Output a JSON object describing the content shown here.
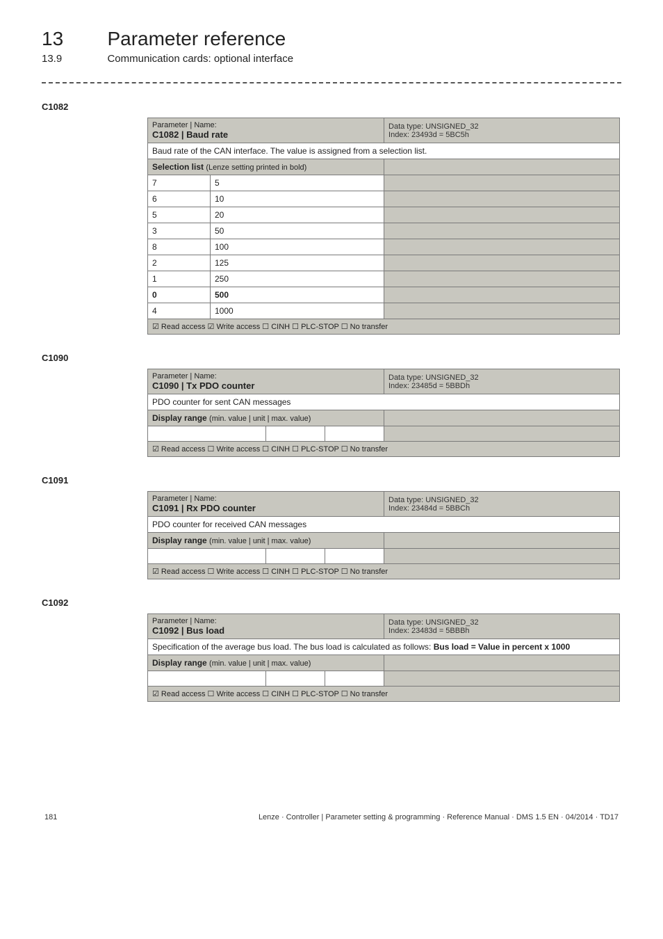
{
  "header": {
    "chapter_num": "13",
    "chapter_title": "Parameter reference",
    "sub_num": "13.9",
    "sub_title": "Communication cards: optional interface"
  },
  "c1082": {
    "code": "C1082",
    "param_line": "Parameter | Name:",
    "title": "C1082 | Baud rate",
    "datatype": "Data type: UNSIGNED_32",
    "index": "Index: 23493d = 5BC5h",
    "desc": "Baud rate of the CAN interface. The value is assigned from a selection list.",
    "sel_header": "Selection list",
    "sel_header_small": "(Lenze setting printed in bold)",
    "rows": [
      {
        "n": "7",
        "v": "5",
        "bold": false
      },
      {
        "n": "6",
        "v": "10",
        "bold": false
      },
      {
        "n": "5",
        "v": "20",
        "bold": false
      },
      {
        "n": "3",
        "v": "50",
        "bold": false
      },
      {
        "n": "8",
        "v": "100",
        "bold": false
      },
      {
        "n": "2",
        "v": "125",
        "bold": false
      },
      {
        "n": "1",
        "v": "250",
        "bold": false
      },
      {
        "n": "0",
        "v": "500",
        "bold": true
      },
      {
        "n": "4",
        "v": "1000",
        "bold": false
      }
    ],
    "access": "☑ Read access   ☑ Write access   ☐ CINH   ☐ PLC-STOP   ☐ No transfer"
  },
  "c1090": {
    "code": "C1090",
    "param_line": "Parameter | Name:",
    "title": "C1090 | Tx PDO counter",
    "datatype": "Data type: UNSIGNED_32",
    "index": "Index: 23485d = 5BBDh",
    "desc": "PDO counter for sent CAN messages",
    "drange": "Display range",
    "drange_small": "(min. value | unit | max. value)",
    "access": "☑ Read access   ☐ Write access   ☐ CINH   ☐ PLC-STOP   ☐ No transfer"
  },
  "c1091": {
    "code": "C1091",
    "param_line": "Parameter | Name:",
    "title": "C1091 | Rx PDO counter",
    "datatype": "Data type: UNSIGNED_32",
    "index": "Index: 23484d = 5BBCh",
    "desc": "PDO counter for received CAN messages",
    "drange": "Display range",
    "drange_small": "(min. value | unit | max. value)",
    "access": "☑ Read access   ☐ Write access   ☐ CINH   ☐ PLC-STOP   ☐ No transfer"
  },
  "c1092": {
    "code": "C1092",
    "param_line": "Parameter | Name:",
    "title": "C1092 | Bus load",
    "datatype": "Data type: UNSIGNED_32",
    "index": "Index: 23483d = 5BBBh",
    "desc": "Specification of the average bus load. The bus load is calculated as follows: Bus load = Value in percent x 1000",
    "drange": "Display range",
    "drange_small": "(min. value | unit | max. value)",
    "access": "☑ Read access   ☐ Write access   ☐ CINH   ☐ PLC-STOP   ☐ No transfer"
  },
  "footer": {
    "page": "181",
    "text": "Lenze · Controller | Parameter setting & programming · Reference Manual · DMS 1.5 EN · 04/2014 · TD17"
  }
}
